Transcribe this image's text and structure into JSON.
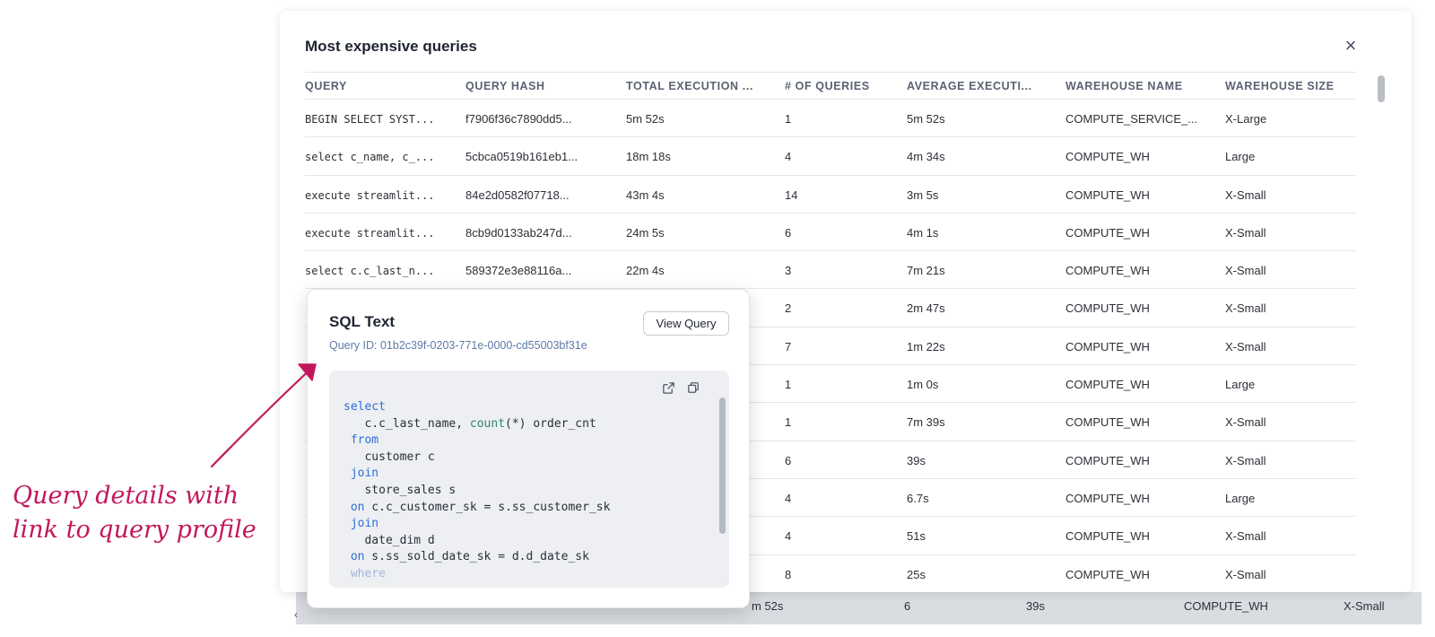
{
  "modal": {
    "title": "Most expensive queries",
    "close_symbol": "×"
  },
  "table": {
    "headers": [
      "QUERY",
      "QUERY HASH",
      "TOTAL EXECUTION ...",
      "# OF QUERIES",
      "AVERAGE EXECUTI...",
      "WAREHOUSE NAME",
      "WAREHOUSE SIZE"
    ],
    "rows": [
      [
        "BEGIN SELECT SYST...",
        "f7906f36c7890dd5...",
        "5m 52s",
        "1",
        "5m 52s",
        "COMPUTE_SERVICE_...",
        "X-Large"
      ],
      [
        "select c_name, c_...",
        "5cbca0519b161eb1...",
        "18m 18s",
        "4",
        "4m 34s",
        "COMPUTE_WH",
        "Large"
      ],
      [
        "execute streamlit...",
        "84e2d0582f07718...",
        "43m 4s",
        "14",
        "3m 5s",
        "COMPUTE_WH",
        "X-Small"
      ],
      [
        "execute streamlit...",
        "8cb9d0133ab247d...",
        "24m 5s",
        "6",
        "4m 1s",
        "COMPUTE_WH",
        "X-Small"
      ],
      [
        "select c.c_last_n...",
        "589372e3e88116a...",
        "22m 4s",
        "3",
        "7m 21s",
        "COMPUTE_WH",
        "X-Small"
      ],
      [
        "",
        "",
        "",
        "2",
        "2m 47s",
        "COMPUTE_WH",
        "X-Small"
      ],
      [
        "",
        "",
        "",
        "7",
        "1m 22s",
        "COMPUTE_WH",
        "X-Small"
      ],
      [
        "",
        "",
        "",
        "1",
        "1m 0s",
        "COMPUTE_WH",
        "Large"
      ],
      [
        "",
        "",
        "",
        "1",
        "7m 39s",
        "COMPUTE_WH",
        "X-Small"
      ],
      [
        "",
        "",
        "",
        "6",
        "39s",
        "COMPUTE_WH",
        "X-Small"
      ],
      [
        "",
        "",
        "",
        "4",
        "6.7s",
        "COMPUTE_WH",
        "Large"
      ],
      [
        "",
        "",
        "",
        "4",
        "51s",
        "COMPUTE_WH",
        "X-Small"
      ],
      [
        "",
        "",
        "",
        "8",
        "25s",
        "COMPUTE_WH",
        "X-Small"
      ]
    ]
  },
  "background_row": {
    "total": "m 52s",
    "count": "6",
    "avg": "39s",
    "warehouse": "COMPUTE_WH",
    "size": "X-Small"
  },
  "popover": {
    "title": "SQL Text",
    "query_id": "Query ID: 01b2c39f-0203-771e-0000-cd55003bf31e",
    "view_button": "View Query",
    "icons": [
      "external-link-icon",
      "copy-icon"
    ],
    "sql_lines": [
      "select",
      "   c.c_last_name, count(*) order_cnt",
      " from",
      "   customer c",
      " join",
      "   store_sales s",
      " on c.c_customer_sk = s.ss_customer_sk",
      " join",
      "   date_dim d",
      " on s.ss_sold_date_sk = d.d_date_sk",
      " where"
    ]
  },
  "annotation": {
    "line1": "Query details with",
    "line2": "link to query profile",
    "color": "#c2185b"
  }
}
